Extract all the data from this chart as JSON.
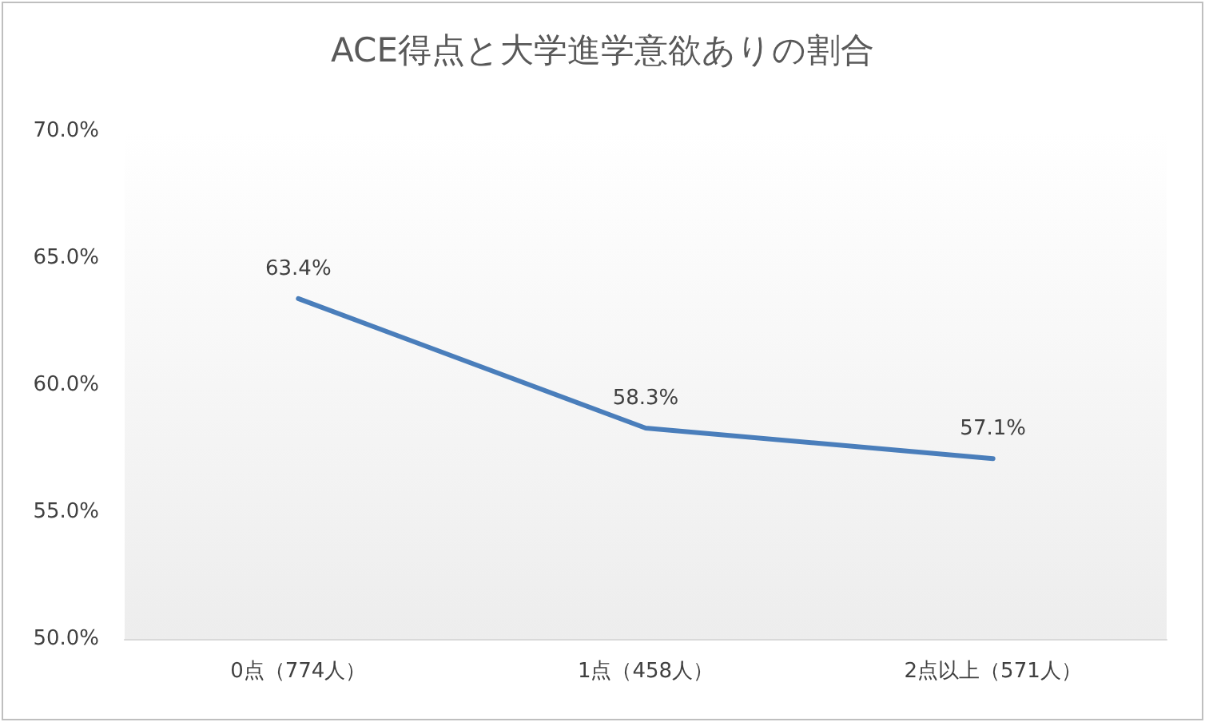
{
  "chart_data": {
    "type": "line",
    "title": "ACE得点と大学進学意欲ありの割合",
    "categories": [
      "0点（774人）",
      "1点（458人）",
      "2点以上（571人）"
    ],
    "series": [
      {
        "color": "#4a7ebb",
        "values": [
          63.4,
          58.3,
          57.1
        ],
        "value_labels": [
          "63.4%",
          "58.3%",
          "57.1%"
        ]
      }
    ],
    "ylim": [
      50,
      70
    ],
    "yticks": [
      {
        "value": 50,
        "label": "50.0%"
      },
      {
        "value": 55,
        "label": "55.0%"
      },
      {
        "value": 60,
        "label": "60.0%"
      },
      {
        "value": 65,
        "label": "65.0%"
      },
      {
        "value": 70,
        "label": "70.0%"
      }
    ],
    "grid": false,
    "marker": "none",
    "line_style": "solid"
  }
}
